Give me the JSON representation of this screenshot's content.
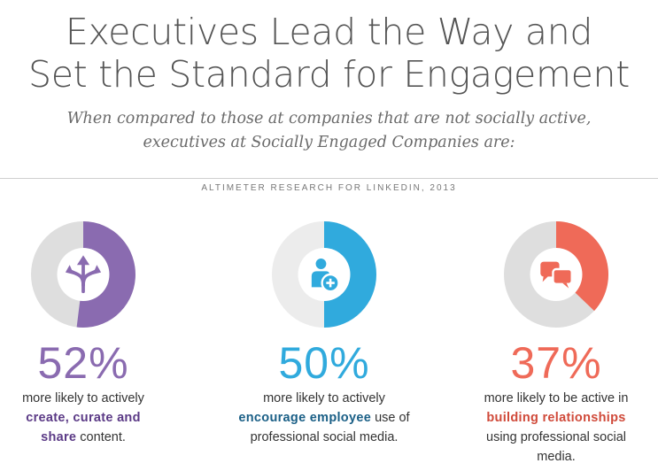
{
  "title": [
    "Executives Lead the Way and",
    "Set the Standard for Engagement"
  ],
  "subtitle": [
    "When compared to those at companies that are not socially active,",
    "executives at Socially Engaged Companies are:"
  ],
  "source": "ALTIMETER RESEARCH FOR LINKEDIN, 2013",
  "chart_data": {
    "type": "pie",
    "variant": "donut",
    "items": [
      {
        "value": 52,
        "label": "52%",
        "icon": "diverging-arrows-icon",
        "color": "#8a6bb0",
        "accent_text_color": "#5b3a86",
        "lines": [
          [
            "more likely to actively",
            ""
          ],
          [
            "create, curate and",
            ""
          ],
          [
            "share",
            " content."
          ]
        ]
      },
      {
        "value": 50,
        "label": "50%",
        "icon": "add-user-icon",
        "color": "#30aadd",
        "accent_text_color": "#1a5f86",
        "lines": [
          [
            "more likely to actively",
            ""
          ],
          [
            "encourage employee",
            " use of"
          ],
          [
            "professional social media.",
            ""
          ]
        ]
      },
      {
        "value": 37,
        "label": "37%",
        "icon": "chat-bubbles-icon",
        "color": "#ef6a58",
        "accent_text_color": "#d04a3a",
        "lines": [
          [
            "more likely to be active in",
            ""
          ],
          [
            "building relationships",
            ""
          ],
          [
            "using professional social",
            ""
          ],
          [
            "media.",
            ""
          ]
        ]
      }
    ]
  }
}
